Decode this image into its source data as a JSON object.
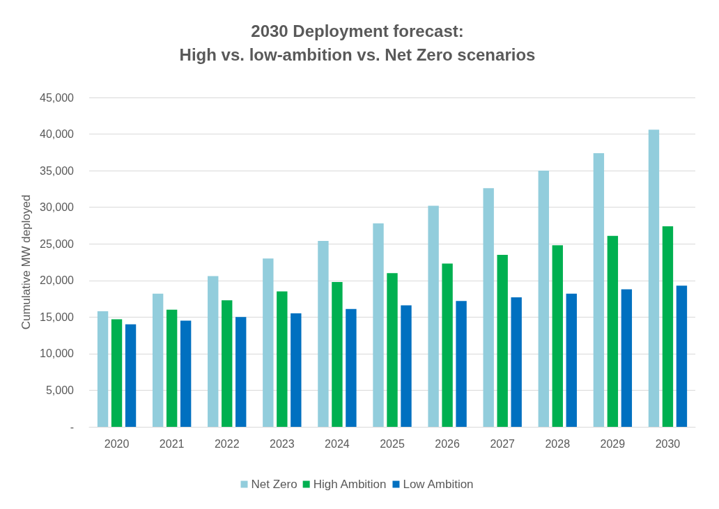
{
  "chart_data": {
    "type": "bar",
    "title": "2030 Deployment forecast:\nHigh vs. low-ambition vs. Net Zero scenarios",
    "ylabel": "Cumulative MW deployed",
    "categories": [
      "2020",
      "2021",
      "2022",
      "2023",
      "2024",
      "2025",
      "2026",
      "2027",
      "2028",
      "2029",
      "2030"
    ],
    "series": [
      {
        "name": "Net Zero",
        "color": "#92cddc",
        "values": [
          15800,
          18200,
          20600,
          23000,
          25400,
          27800,
          30200,
          32600,
          35000,
          37400,
          40600
        ]
      },
      {
        "name": "High Ambition",
        "color": "#00b050",
        "values": [
          14700,
          16000,
          17300,
          18500,
          19800,
          21000,
          22300,
          23500,
          24800,
          26100,
          27400
        ]
      },
      {
        "name": "Low Ambition",
        "color": "#0070c0",
        "values": [
          14000,
          14500,
          15000,
          15500,
          16100,
          16600,
          17200,
          17700,
          18200,
          18800,
          19300
        ]
      }
    ],
    "ylim": [
      0,
      45000
    ],
    "yticks": [
      {
        "value": 0,
        "label": "-"
      },
      {
        "value": 5000,
        "label": "5,000"
      },
      {
        "value": 10000,
        "label": "10,000"
      },
      {
        "value": 15000,
        "label": "15,000"
      },
      {
        "value": 20000,
        "label": "20,000"
      },
      {
        "value": 25000,
        "label": "25,000"
      },
      {
        "value": 30000,
        "label": "30,000"
      },
      {
        "value": 35000,
        "label": "35,000"
      },
      {
        "value": 40000,
        "label": "40,000"
      },
      {
        "value": 45000,
        "label": "45,000"
      }
    ],
    "grid": "y",
    "legend": "bottom"
  }
}
